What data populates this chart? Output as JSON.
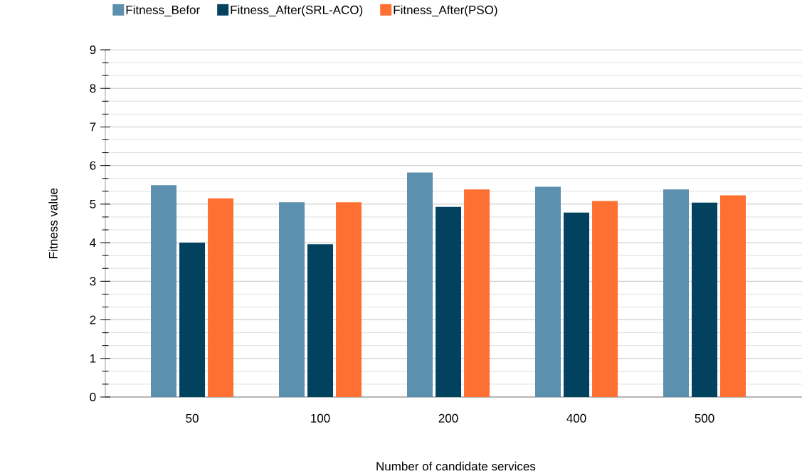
{
  "chart_data": {
    "type": "bar",
    "xlabel": "Number of candidate services",
    "ylabel": "Fitness value",
    "categories": [
      "50",
      "100",
      "200",
      "400",
      "500"
    ],
    "series": [
      {
        "name": "Fitness_Befor",
        "color": "#5b90ae",
        "values": [
          5.49,
          5.05,
          5.82,
          5.45,
          5.38
        ]
      },
      {
        "name": "Fitness_After(SRL-ACO)",
        "color": "#03425e",
        "values": [
          4.0,
          3.96,
          4.93,
          4.78,
          5.04
        ]
      },
      {
        "name": "Fitness_After(PSO)",
        "color": "#fe7032",
        "values": [
          5.15,
          5.05,
          5.38,
          5.08,
          5.23
        ]
      }
    ],
    "ylim": [
      0,
      9
    ],
    "yticks": [
      0,
      1,
      2,
      3,
      4,
      5,
      6,
      7,
      8,
      9
    ],
    "grid": "y",
    "legend": "top"
  }
}
